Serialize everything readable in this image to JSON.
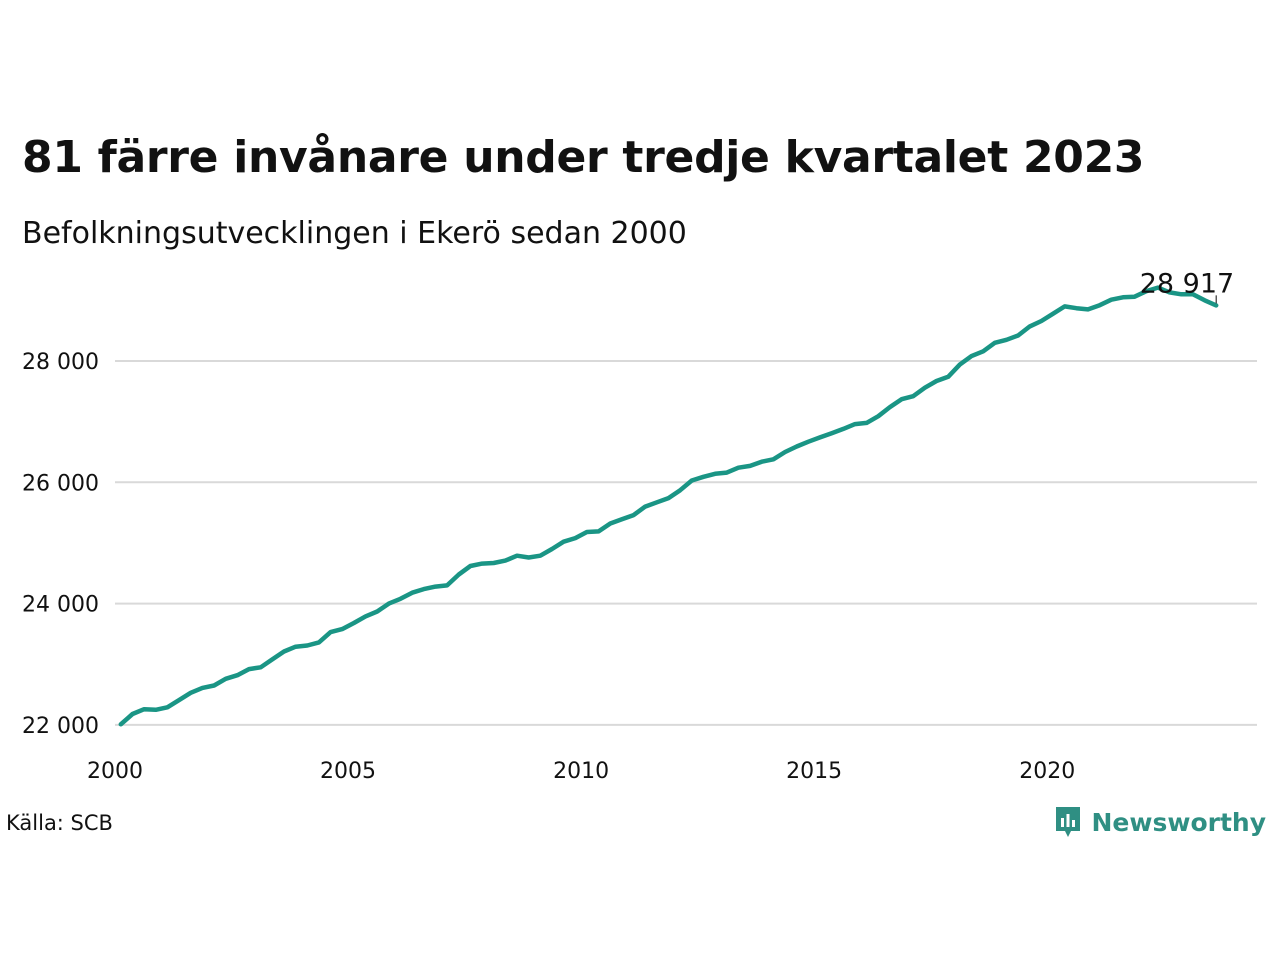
{
  "header": {
    "title": "81 färre invånare under tredje kvartalet 2023",
    "subtitle": "Befolkningsutvecklingen i Ekerö sedan 2000"
  },
  "footer": {
    "source": "Källa: SCB",
    "brand": "Newsworthy",
    "brand_icon": "newsworthy-logo-icon",
    "brand_color": "#2f8f83"
  },
  "chart_data": {
    "type": "line",
    "title": "81 färre invånare under tredje kvartalet 2023",
    "subtitle": "Befolkningsutvecklingen i Ekerö sedan 2000",
    "xlabel": "",
    "ylabel": "",
    "line_color": "#1a9585",
    "grid": true,
    "xlim": [
      2000,
      2024.5
    ],
    "ylim": [
      21900,
      29500
    ],
    "x_ticks": [
      2000,
      2005,
      2010,
      2015,
      2020
    ],
    "x_tick_labels": [
      "2000",
      "2005",
      "2010",
      "2015",
      "2020"
    ],
    "y_ticks": [
      22000,
      24000,
      26000,
      28000
    ],
    "y_tick_labels": [
      "22 000",
      "24 000",
      "26 000",
      "28 000"
    ],
    "end_label": "28 917",
    "series": [
      {
        "x": [
          2000.125,
          2000.375,
          2000.625,
          2000.875,
          2001.125,
          2001.375,
          2001.625,
          2001.875,
          2002.125,
          2002.375,
          2002.625,
          2002.875,
          2003.125,
          2003.375,
          2003.625,
          2003.875,
          2004.125,
          2004.375,
          2004.625,
          2004.875,
          2005.125,
          2005.375,
          2005.625,
          2005.875,
          2006.125,
          2006.375,
          2006.625,
          2006.875,
          2007.125,
          2007.375,
          2007.625,
          2007.875,
          2008.125,
          2008.375,
          2008.625,
          2008.875,
          2009.125,
          2009.375,
          2009.625,
          2009.875,
          2010.125,
          2010.375,
          2010.625,
          2010.875,
          2011.125,
          2011.375,
          2011.625,
          2011.875,
          2012.125,
          2012.375,
          2012.625,
          2012.875,
          2013.125,
          2013.375,
          2013.625,
          2013.875,
          2014.125,
          2014.375,
          2014.625,
          2014.875,
          2015.125,
          2015.375,
          2015.625,
          2015.875,
          2016.125,
          2016.375,
          2016.625,
          2016.875,
          2017.125,
          2017.375,
          2017.625,
          2017.875,
          2018.125,
          2018.375,
          2018.625,
          2018.875,
          2019.125,
          2019.375,
          2019.625,
          2019.875,
          2020.125,
          2020.375,
          2020.625,
          2020.875,
          2021.125,
          2021.375,
          2021.625,
          2021.875,
          2022.125,
          2022.375,
          2022.625,
          2022.875,
          2023.125,
          2023.375,
          2023.625
        ],
        "values": [
          22010,
          22180,
          22260,
          22250,
          22290,
          22410,
          22530,
          22610,
          22650,
          22760,
          22820,
          22920,
          22950,
          23080,
          23210,
          23290,
          23310,
          23360,
          23530,
          23580,
          23680,
          23790,
          23870,
          24000,
          24080,
          24180,
          24240,
          24280,
          24300,
          24480,
          24620,
          24660,
          24670,
          24710,
          24790,
          24760,
          24790,
          24900,
          25020,
          25080,
          25180,
          25190,
          25320,
          25390,
          25460,
          25600,
          25670,
          25740,
          25870,
          26030,
          26090,
          26140,
          26160,
          26240,
          26270,
          26340,
          26380,
          26500,
          26590,
          26670,
          26740,
          26810,
          26880,
          26960,
          26980,
          27090,
          27240,
          27370,
          27420,
          27560,
          27670,
          27740,
          27940,
          28080,
          28160,
          28300,
          28350,
          28420,
          28570,
          28660,
          28780,
          28900,
          28870,
          28850,
          28920,
          29010,
          29050,
          29060,
          29150,
          29210,
          29130,
          29100,
          29100,
          29000,
          28917
        ]
      }
    ]
  }
}
